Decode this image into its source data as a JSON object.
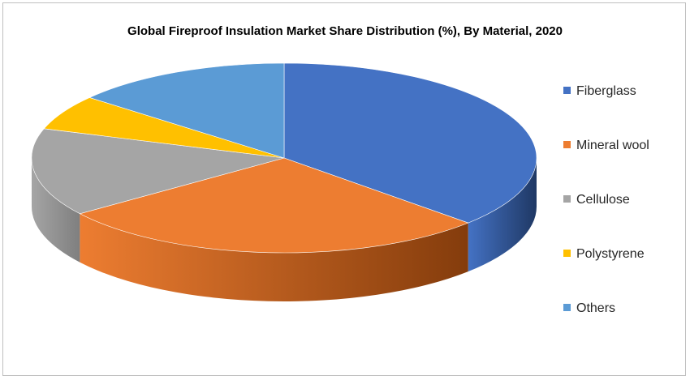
{
  "chart_data": {
    "type": "pie",
    "title": "Global Fireproof Insulation Market Share Distribution (%), By Material, 2020",
    "three_d": true,
    "legend_position": "right",
    "slices": [
      {
        "label": "Fiberglass",
        "value": 37,
        "color": "#4472c4",
        "side_color": "#1f3864"
      },
      {
        "label": "Mineral wool",
        "value": 28,
        "color": "#ed7d31",
        "side_color": "#843c0c"
      },
      {
        "label": "Cellulose",
        "value": 15,
        "color": "#a5a5a5",
        "side_color": "#7f7f7f"
      },
      {
        "label": "Polystyrene",
        "value": 6,
        "color": "#ffc000",
        "side_color": "#bf9000"
      },
      {
        "label": "Others",
        "value": 14,
        "color": "#5b9bd5",
        "side_color": "#2e75b6"
      }
    ]
  }
}
